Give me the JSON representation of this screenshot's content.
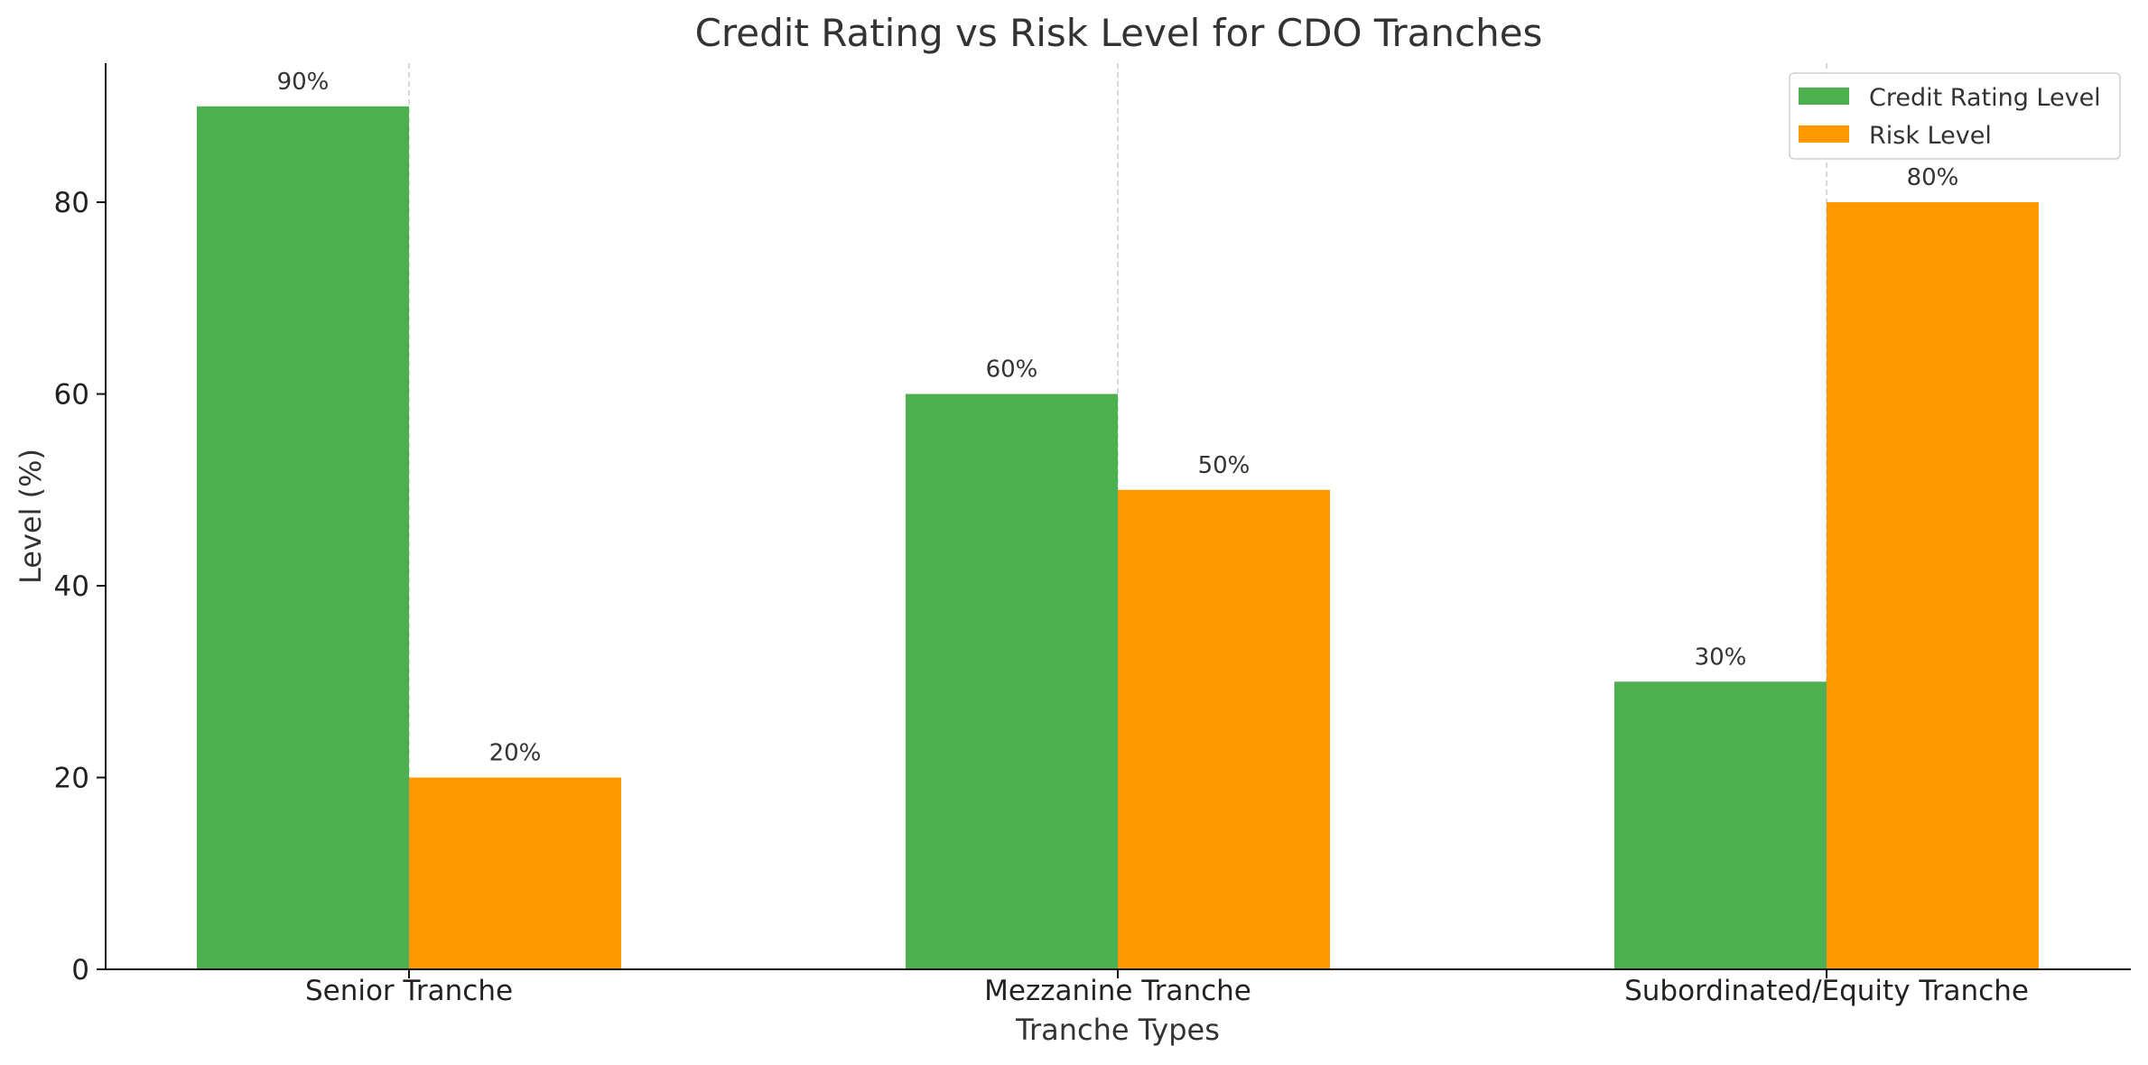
{
  "chart_data": {
    "type": "bar",
    "title": "Credit Rating vs Risk Level for CDO Tranches",
    "xlabel": "Tranche Types",
    "ylabel": "Level (%)",
    "categories": [
      "Senior Tranche",
      "Mezzanine Tranche",
      "Subordinated/Equity Tranche"
    ],
    "series": [
      {
        "name": "Credit Rating Level",
        "values": [
          90,
          60,
          30
        ],
        "labels": [
          "90%",
          "60%",
          "30%"
        ],
        "color": "#4caf50"
      },
      {
        "name": "Risk Level",
        "values": [
          20,
          50,
          80
        ],
        "labels": [
          "20%",
          "50%",
          "80%"
        ],
        "color": "#ff9800"
      }
    ],
    "ylim": [
      0,
      94.5
    ],
    "yticks": [
      0,
      20,
      40,
      60,
      80
    ],
    "ytick_labels": [
      "0",
      "20",
      "40",
      "60",
      "80"
    ],
    "grid": "vertical-dashed",
    "legend": "top-right"
  }
}
